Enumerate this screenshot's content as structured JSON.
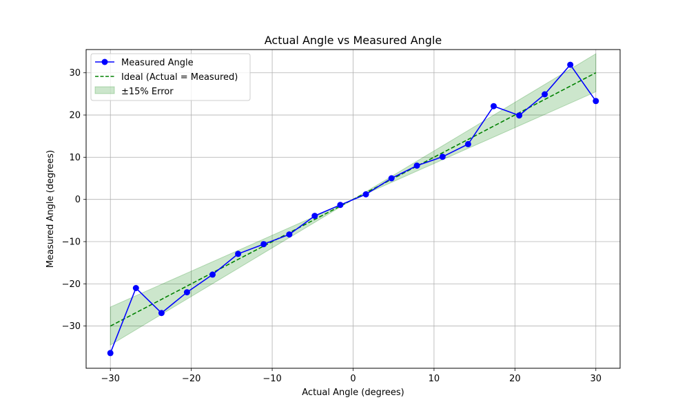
{
  "chart_data": {
    "type": "line",
    "title": "Actual Angle vs Measured Angle",
    "xlabel": "Actual Angle (degrees)",
    "ylabel": "Measured Angle (degrees)",
    "xlim": [
      -33,
      33
    ],
    "ylim": [
      -40,
      35.5
    ],
    "xticks": [
      -30,
      -20,
      -10,
      0,
      10,
      20,
      30
    ],
    "yticks": [
      -30,
      -20,
      -10,
      0,
      10,
      20,
      30
    ],
    "xtick_labels": [
      "−30",
      "−20",
      "−10",
      "0",
      "10",
      "20",
      "30"
    ],
    "ytick_labels": [
      "−30",
      "−20",
      "−10",
      "0",
      "10",
      "20",
      "30"
    ],
    "grid": true,
    "legend_position": "top-left",
    "x": [
      -30,
      -26.84,
      -23.68,
      -20.53,
      -17.37,
      -14.21,
      -11.05,
      -7.89,
      -4.74,
      -1.58,
      1.58,
      4.74,
      7.89,
      11.05,
      14.21,
      17.37,
      20.53,
      23.68,
      26.84,
      30
    ],
    "series": [
      {
        "name": "Measured Angle",
        "kind": "line-marker",
        "color": "#0000ff",
        "values": [
          -36.4,
          -21.0,
          -26.9,
          -22.0,
          -17.8,
          -12.9,
          -10.6,
          -8.3,
          -3.9,
          -1.3,
          1.2,
          5.0,
          8.0,
          10.1,
          13.1,
          22.1,
          19.9,
          24.9,
          31.9,
          23.3
        ]
      },
      {
        "name": "Ideal (Actual = Measured)",
        "kind": "dashed-line",
        "color": "#008000",
        "values": [
          -30,
          -26.84,
          -23.68,
          -20.53,
          -17.37,
          -14.21,
          -11.05,
          -7.89,
          -4.74,
          -1.58,
          1.58,
          4.74,
          7.89,
          11.05,
          14.21,
          17.37,
          20.53,
          23.68,
          26.84,
          30
        ]
      },
      {
        "name": "±15% Error",
        "kind": "band",
        "color": "#008000",
        "opacity": 0.2,
        "lower_factor": 0.85,
        "upper_factor": 1.15
      }
    ]
  }
}
